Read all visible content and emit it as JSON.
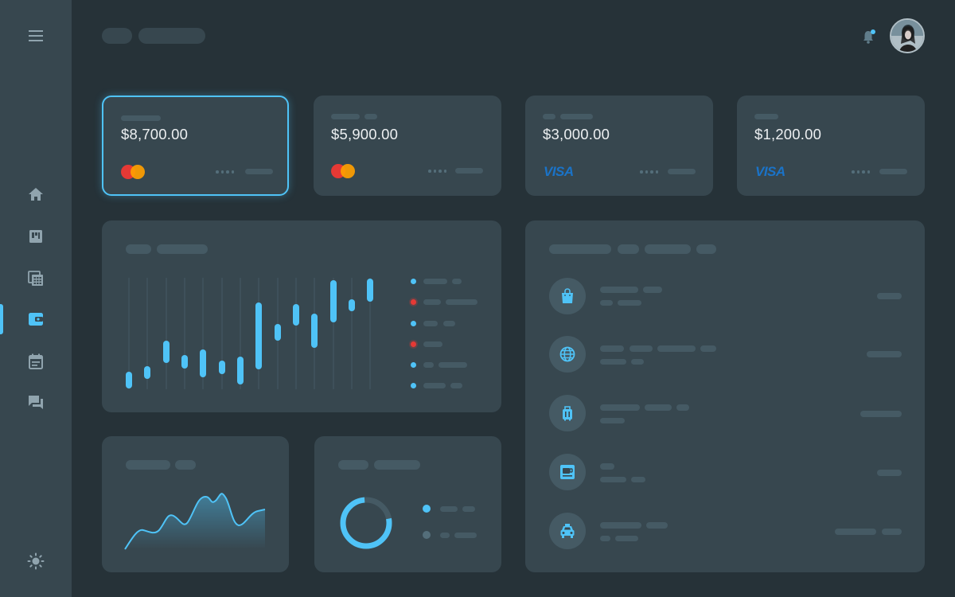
{
  "cards": [
    {
      "amount": "$8,700.00",
      "brand": "mastercard",
      "selected": true
    },
    {
      "amount": "$5,900.00",
      "brand": "mastercard",
      "selected": false
    },
    {
      "amount": "$3,000.00",
      "brand": "visa",
      "brand_text": "VISA",
      "selected": false
    },
    {
      "amount": "$1,200.00",
      "brand": "visa",
      "brand_text": "VISA",
      "selected": false
    }
  ],
  "sidebar": {
    "items": [
      "home-icon",
      "dashboard-icon",
      "calculator-icon",
      "wallet-icon",
      "calendar-icon",
      "chat-icon"
    ],
    "active": "wallet-icon",
    "bottom": "brightness-icon"
  },
  "transactions": [
    "shopping-bag-icon",
    "globe-icon",
    "luggage-icon",
    "coffee-icon",
    "taxi-icon"
  ],
  "colors": {
    "accent": "#4fc3f7",
    "background": "#263238",
    "card": "#37474f",
    "placeholder": "#455a64",
    "visa": "#1a73c8",
    "mastercard_red": "#e53935",
    "mastercard_orange": "#ffa000"
  }
}
